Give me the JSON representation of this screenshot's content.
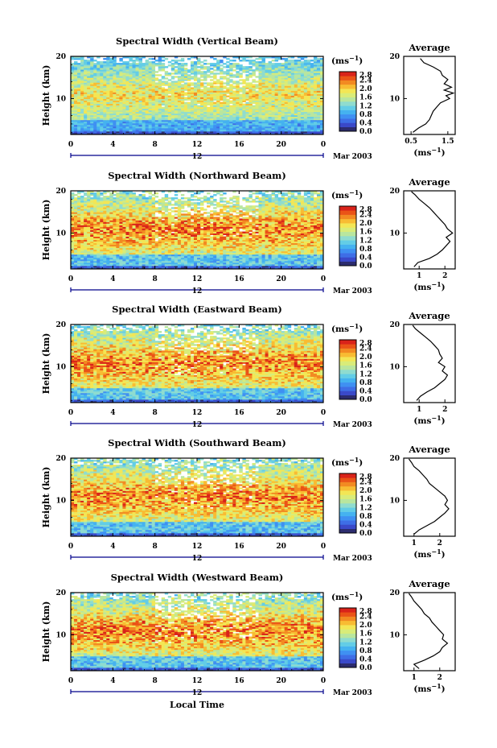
{
  "figure": {
    "xlabel": "Local Time",
    "height_label": "Height (km)",
    "date_label": "Mar 2003"
  },
  "colorbar": {
    "unit": "(ms",
    "unit_sup": "−1",
    "unit_close": ")",
    "ticks": [
      "2.8",
      "2.4",
      "2.0",
      "1.6",
      "1.2",
      "0.8",
      "0.4",
      "0.0"
    ],
    "colors": [
      "#2c2c6e",
      "#3a49c9",
      "#3e6ee6",
      "#3f90f2",
      "#45b2f0",
      "#63cde6",
      "#8fdccf",
      "#b9e69e",
      "#d9ec79",
      "#f3e655",
      "#f8bc33",
      "#f28a22",
      "#ea5317",
      "#d9231a"
    ]
  },
  "chart_data": [
    {
      "type": "heatmap",
      "title": "Spectral Width (Vertical Beam)",
      "xlabel": "",
      "ylabel": "Height (km)",
      "x_ticks": [
        "0",
        "4",
        "8",
        "12",
        "16",
        "20",
        "0"
      ],
      "y_ticks": [
        "20",
        "10"
      ],
      "xlim": [
        0,
        24
      ],
      "ylim": [
        1.5,
        20
      ],
      "zlim": [
        0,
        2.8
      ],
      "day_marker": "12",
      "profile": {
        "title": "Average",
        "xlabel": "(ms",
        "x_ticks": [
          "0.5",
          "1.5"
        ],
        "xlim": [
          0.3,
          1.7
        ],
        "points": [
          [
            0.55,
            2
          ],
          [
            0.7,
            3
          ],
          [
            0.9,
            4
          ],
          [
            1.0,
            5
          ],
          [
            1.05,
            6
          ],
          [
            1.1,
            7
          ],
          [
            1.2,
            8
          ],
          [
            1.3,
            9
          ],
          [
            1.55,
            10
          ],
          [
            1.45,
            10.7
          ],
          [
            1.65,
            11.3
          ],
          [
            1.4,
            12
          ],
          [
            1.6,
            12.7
          ],
          [
            1.4,
            13.5
          ],
          [
            1.5,
            14.5
          ],
          [
            1.35,
            15.5
          ],
          [
            1.3,
            16.5
          ],
          [
            1.1,
            17.5
          ],
          [
            0.85,
            18.5
          ],
          [
            0.75,
            19.5
          ]
        ]
      }
    },
    {
      "type": "heatmap",
      "title": "Spectral Width (Northward Beam)",
      "xlabel": "",
      "ylabel": "Height (km)",
      "x_ticks": [
        "0",
        "4",
        "8",
        "12",
        "16",
        "20",
        "0"
      ],
      "y_ticks": [
        "20",
        "10"
      ],
      "xlim": [
        0,
        24
      ],
      "ylim": [
        1.5,
        20
      ],
      "zlim": [
        0,
        2.8
      ],
      "day_marker": "12",
      "profile": {
        "title": "Average",
        "xlabel": "(ms",
        "x_ticks": [
          "1",
          "2"
        ],
        "xlim": [
          0.4,
          2.4
        ],
        "points": [
          [
            0.8,
            2
          ],
          [
            0.95,
            3
          ],
          [
            1.4,
            4
          ],
          [
            1.7,
            5
          ],
          [
            1.9,
            6
          ],
          [
            2.05,
            7
          ],
          [
            2.2,
            8
          ],
          [
            2.05,
            9
          ],
          [
            2.3,
            10
          ],
          [
            2.1,
            11
          ],
          [
            2.0,
            12
          ],
          [
            1.85,
            13
          ],
          [
            1.7,
            14
          ],
          [
            1.55,
            15
          ],
          [
            1.4,
            16
          ],
          [
            1.2,
            17
          ],
          [
            1.0,
            18
          ],
          [
            0.85,
            19
          ],
          [
            0.7,
            19.8
          ]
        ]
      }
    },
    {
      "type": "heatmap",
      "title": "Spectral Width (Eastward Beam)",
      "xlabel": "",
      "ylabel": "Height (km)",
      "x_ticks": [
        "0",
        "4",
        "8",
        "12",
        "16",
        "20",
        "0"
      ],
      "y_ticks": [
        "20",
        "10"
      ],
      "xlim": [
        0,
        24
      ],
      "ylim": [
        1.5,
        20
      ],
      "zlim": [
        0,
        2.8
      ],
      "day_marker": "12",
      "profile": {
        "title": "Average",
        "xlabel": "(ms",
        "x_ticks": [
          "1",
          "2"
        ],
        "xlim": [
          0.4,
          2.4
        ],
        "points": [
          [
            0.9,
            2
          ],
          [
            1.05,
            3
          ],
          [
            1.3,
            4
          ],
          [
            1.6,
            5
          ],
          [
            1.8,
            6
          ],
          [
            2.0,
            7
          ],
          [
            2.1,
            8
          ],
          [
            1.9,
            9
          ],
          [
            2.0,
            10
          ],
          [
            1.75,
            11
          ],
          [
            1.9,
            12
          ],
          [
            1.8,
            13
          ],
          [
            1.75,
            14
          ],
          [
            1.6,
            15
          ],
          [
            1.45,
            16
          ],
          [
            1.25,
            17
          ],
          [
            1.05,
            18
          ],
          [
            0.85,
            19
          ],
          [
            0.75,
            19.8
          ]
        ]
      }
    },
    {
      "type": "heatmap",
      "title": "Spectral Width (Southward Beam)",
      "xlabel": "",
      "ylabel": "Height (km)",
      "x_ticks": [
        "0",
        "4",
        "8",
        "12",
        "16",
        "20",
        "0"
      ],
      "y_ticks": [
        "20",
        "10"
      ],
      "xlim": [
        0,
        24
      ],
      "ylim": [
        1.5,
        20
      ],
      "zlim": [
        0,
        2.8
      ],
      "day_marker": "12",
      "profile": {
        "title": "Average",
        "xlabel": "(ms",
        "x_ticks": [
          "1",
          "2"
        ],
        "xlim": [
          0.6,
          2.6
        ],
        "points": [
          [
            1.0,
            2
          ],
          [
            1.2,
            3
          ],
          [
            1.5,
            4
          ],
          [
            1.8,
            5
          ],
          [
            2.0,
            6
          ],
          [
            2.2,
            7
          ],
          [
            2.35,
            8
          ],
          [
            2.2,
            9
          ],
          [
            2.3,
            10
          ],
          [
            2.2,
            11
          ],
          [
            2.0,
            12
          ],
          [
            1.8,
            13
          ],
          [
            1.6,
            14
          ],
          [
            1.5,
            15
          ],
          [
            1.35,
            16
          ],
          [
            1.2,
            17
          ],
          [
            1.0,
            18
          ],
          [
            0.9,
            19
          ],
          [
            0.8,
            19.8
          ]
        ]
      }
    },
    {
      "type": "heatmap",
      "title": "Spectral Width (Westward Beam)",
      "xlabel": "Local Time",
      "ylabel": "Height (km)",
      "x_ticks": [
        "0",
        "4",
        "8",
        "12",
        "16",
        "20",
        "0"
      ],
      "y_ticks": [
        "20",
        "10"
      ],
      "xlim": [
        0,
        24
      ],
      "ylim": [
        1.5,
        20
      ],
      "zlim": [
        0,
        2.8
      ],
      "day_marker": "12",
      "profile": {
        "title": "Average",
        "xlabel": "(ms",
        "x_ticks": [
          "1",
          "2"
        ],
        "xlim": [
          0.6,
          2.6
        ],
        "points": [
          [
            1.2,
            2
          ],
          [
            1.0,
            3
          ],
          [
            1.4,
            4
          ],
          [
            1.75,
            5
          ],
          [
            2.0,
            6
          ],
          [
            2.1,
            7
          ],
          [
            2.3,
            8
          ],
          [
            2.1,
            9
          ],
          [
            2.15,
            10
          ],
          [
            2.0,
            11
          ],
          [
            1.85,
            12
          ],
          [
            1.7,
            13
          ],
          [
            1.6,
            14
          ],
          [
            1.4,
            15
          ],
          [
            1.3,
            16
          ],
          [
            1.15,
            17
          ],
          [
            1.0,
            18
          ],
          [
            0.9,
            19
          ],
          [
            0.8,
            19.8
          ]
        ]
      }
    }
  ]
}
